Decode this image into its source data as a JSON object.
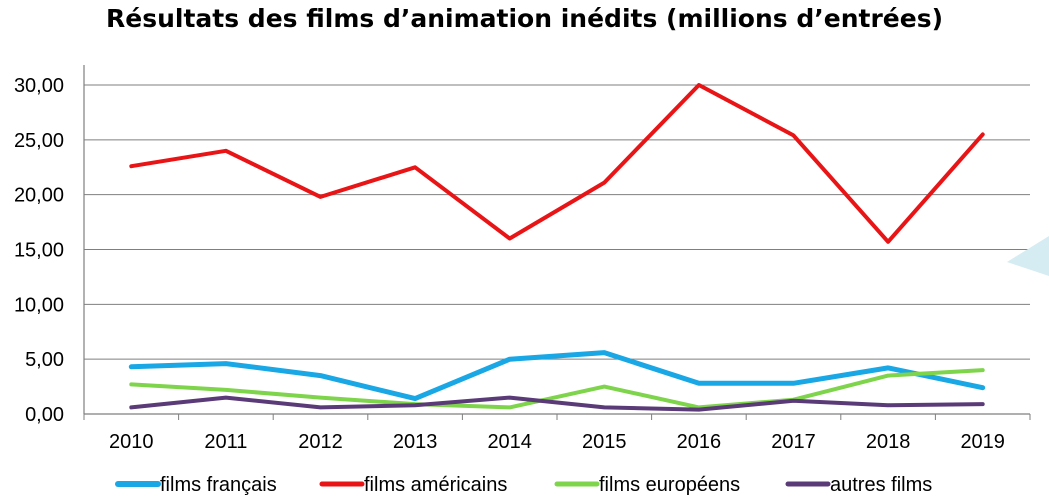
{
  "chart_data": {
    "type": "line",
    "title": "Résultats des films d’animation inédits (millions d’entrées)",
    "xlabel": "",
    "ylabel": "",
    "ylim": [
      0,
      30
    ],
    "yticks": [
      "0,00",
      "5,00",
      "10,00",
      "15,00",
      "20,00",
      "25,00",
      "30,00"
    ],
    "categories": [
      "2010",
      "2011",
      "2012",
      "2013",
      "2014",
      "2015",
      "2016",
      "2017",
      "2018",
      "2019"
    ],
    "grid": "horizontal",
    "legend_position": "bottom",
    "series": [
      {
        "name": "films français",
        "color": "#1aa7e5",
        "values": [
          4.3,
          4.6,
          3.5,
          1.4,
          5.0,
          5.6,
          2.8,
          2.8,
          4.2,
          2.4
        ]
      },
      {
        "name": "films américains",
        "color": "#e81416",
        "values": [
          22.6,
          24.0,
          19.8,
          22.5,
          16.0,
          21.1,
          30.0,
          25.4,
          15.7,
          25.5
        ]
      },
      {
        "name": "films européens",
        "color": "#7ed44a",
        "values": [
          2.7,
          2.2,
          1.5,
          0.9,
          0.6,
          2.5,
          0.6,
          1.3,
          3.5,
          4.0
        ]
      },
      {
        "name": "autres films",
        "color": "#5b3a78",
        "values": [
          0.6,
          1.5,
          0.6,
          0.8,
          1.5,
          0.6,
          0.4,
          1.2,
          0.8,
          0.9
        ]
      }
    ]
  }
}
